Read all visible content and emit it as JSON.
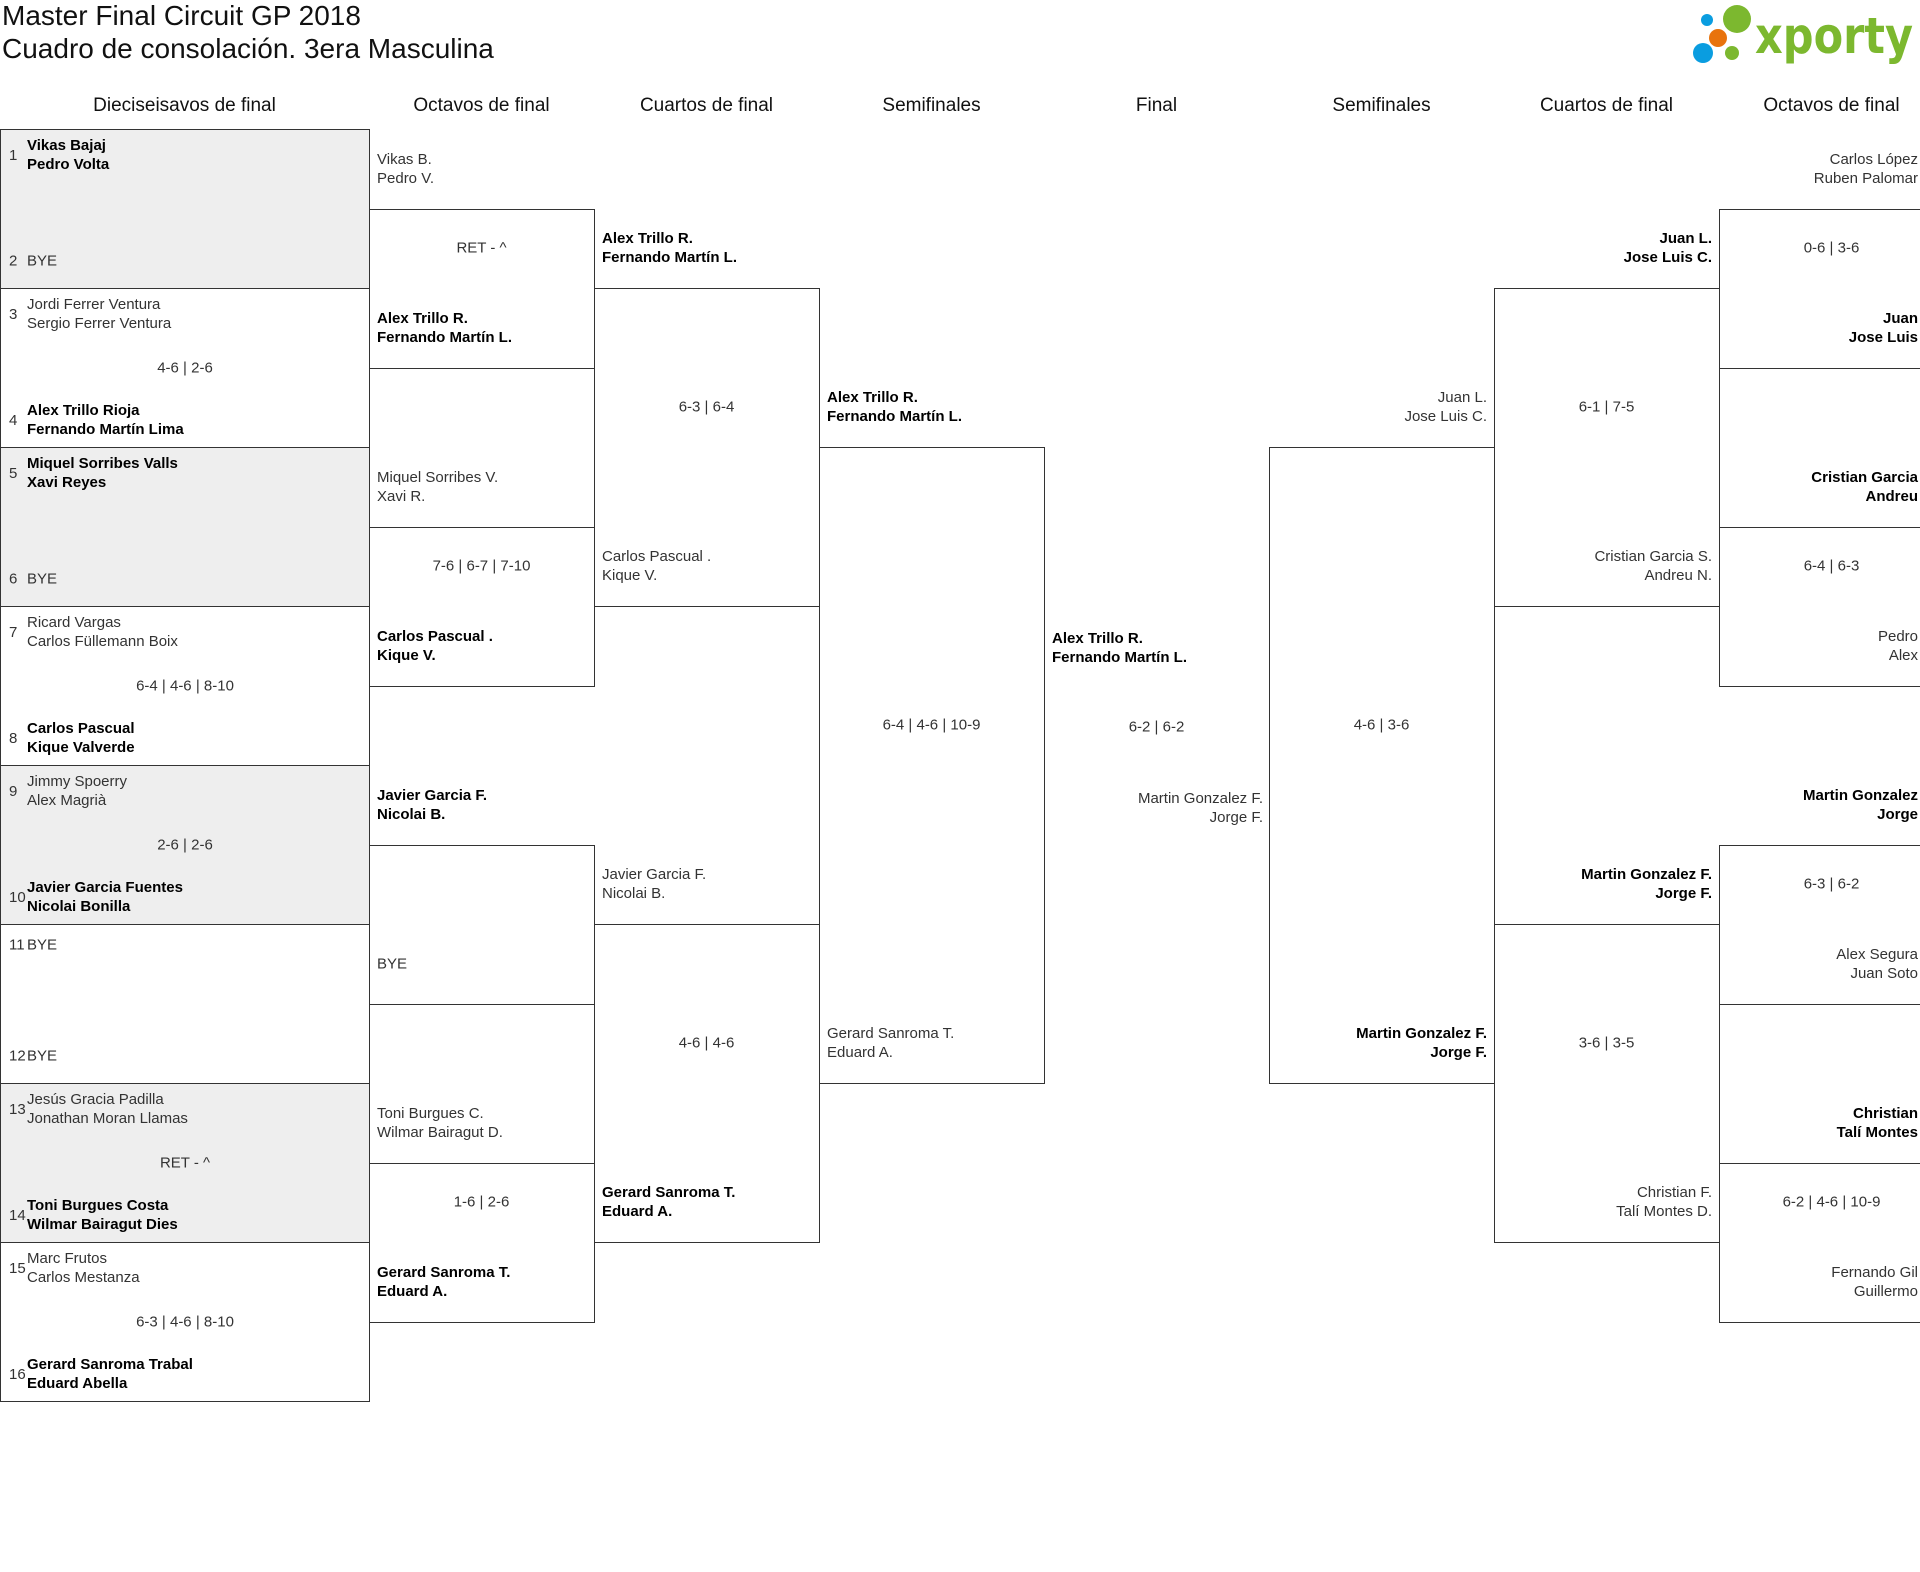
{
  "title": {
    "line1": "Master Final Circuit GP 2018",
    "line2": "Cuadro de consolación. 3era Masculina"
  },
  "logo": {
    "text": "xporty",
    "colors": {
      "green": "#7cb82f",
      "blue": "#0a9de0",
      "orange": "#e8730c"
    }
  },
  "headers": [
    "Dieciseisavos de final",
    "Octavos de final",
    "Cuartos de final",
    "Semifinales",
    "Final",
    "Semifinales",
    "Cuartos de final",
    "Octavos de final"
  ],
  "first_round": [
    {
      "top": {
        "seed": "1",
        "lines": [
          "Vikas Bajaj",
          "Pedro Volta"
        ],
        "win": true
      },
      "bottom": {
        "seed": "2",
        "lines": [
          "BYE"
        ],
        "win": false
      },
      "score": ""
    },
    {
      "top": {
        "seed": "3",
        "lines": [
          "Jordi Ferrer Ventura",
          "Sergio Ferrer Ventura"
        ],
        "win": false
      },
      "bottom": {
        "seed": "4",
        "lines": [
          "Alex Trillo Rioja",
          "Fernando Martín Lima"
        ],
        "win": true
      },
      "score": "4-6 | 2-6"
    },
    {
      "top": {
        "seed": "5",
        "lines": [
          "Miquel Sorribes Valls",
          "Xavi Reyes"
        ],
        "win": true
      },
      "bottom": {
        "seed": "6",
        "lines": [
          "BYE"
        ],
        "win": false
      },
      "score": ""
    },
    {
      "top": {
        "seed": "7",
        "lines": [
          "Ricard Vargas",
          "Carlos Füllemann Boix"
        ],
        "win": false
      },
      "bottom": {
        "seed": "8",
        "lines": [
          "Carlos Pascual",
          "Kique Valverde"
        ],
        "win": true
      },
      "score": "6-4 | 4-6 | 8-10"
    },
    {
      "top": {
        "seed": "9",
        "lines": [
          "Jimmy Spoerry",
          "Alex Magrià"
        ],
        "win": false
      },
      "bottom": {
        "seed": "10",
        "lines": [
          "Javier Garcia Fuentes",
          "Nicolai Bonilla"
        ],
        "win": true
      },
      "score": "2-6 | 2-6"
    },
    {
      "top": {
        "seed": "11",
        "lines": [
          "BYE"
        ],
        "win": false
      },
      "bottom": {
        "seed": "12",
        "lines": [
          "BYE"
        ],
        "win": false
      },
      "score": ""
    },
    {
      "top": {
        "seed": "13",
        "lines": [
          "Jesús Gracia Padilla",
          "Jonathan Moran Llamas"
        ],
        "win": false
      },
      "bottom": {
        "seed": "14",
        "lines": [
          "Toni Burgues Costa",
          "Wilmar Bairagut Dies"
        ],
        "win": true
      },
      "score": "RET - ^"
    },
    {
      "top": {
        "seed": "15",
        "lines": [
          "Marc Frutos",
          "Carlos Mestanza"
        ],
        "win": false
      },
      "bottom": {
        "seed": "16",
        "lines": [
          "Gerard Sanroma Trabal",
          "Eduard Abella"
        ],
        "win": true
      },
      "score": "6-3 | 4-6 | 8-10"
    }
  ],
  "left_rounds": [
    [
      {
        "top": [
          "Vikas B.",
          "Pedro V."
        ],
        "bottom": [
          "Alex Trillo R.",
          "Fernando Martín L."
        ],
        "winner": "bottom",
        "score": "RET - ^"
      },
      {
        "top": [
          "Miquel Sorribes V.",
          "Xavi R."
        ],
        "bottom": [
          "Carlos Pascual .",
          "Kique V."
        ],
        "winner": "bottom",
        "score": "7-6 | 6-7 | 7-10"
      },
      {
        "top": [
          "Javier Garcia F.",
          "Nicolai B."
        ],
        "bottom": [
          "BYE"
        ],
        "winner": "top",
        "score": ""
      },
      {
        "top": [
          "Toni Burgues C.",
          "Wilmar Bairagut D."
        ],
        "bottom": [
          "Gerard Sanroma T.",
          "Eduard A."
        ],
        "winner": "bottom",
        "score": "1-6 | 2-6"
      }
    ],
    [
      {
        "top": [
          "Alex Trillo R.",
          "Fernando Martín L."
        ],
        "bottom": [
          "Carlos Pascual .",
          "Kique V."
        ],
        "winner": "top",
        "score": "6-3 | 6-4"
      },
      {
        "top": [
          "Javier Garcia F.",
          "Nicolai B."
        ],
        "bottom": [
          "Gerard Sanroma T.",
          "Eduard A."
        ],
        "winner": "bottom",
        "score": "4-6 | 4-6"
      }
    ],
    [
      {
        "top": [
          "Alex Trillo R.",
          "Fernando Martín L."
        ],
        "bottom": [
          "Gerard Sanroma T.",
          "Eduard A."
        ],
        "winner": "top",
        "score": "6-4 | 4-6 | 10-9"
      }
    ]
  ],
  "final": {
    "left": [
      "Alex Trillo R.",
      "Fernando Martín L."
    ],
    "right": [
      "Martin Gonzalez F.",
      "Jorge F."
    ],
    "winner": "left",
    "score": "6-2 | 6-2"
  },
  "right_rounds": [
    [
      {
        "top": [
          "Juan L.",
          "Jose Luis C."
        ],
        "bottom": [
          "Martin Gonzalez F.",
          "Jorge F."
        ],
        "winner": "bottom",
        "score": "4-6 | 3-6"
      }
    ],
    [
      {
        "top": [
          "Juan L.",
          "Jose Luis C."
        ],
        "bottom": [
          "Cristian Garcia S.",
          "Andreu N."
        ],
        "winner": "top",
        "score": "6-1 | 7-5"
      },
      {
        "top": [
          "Martin Gonzalez F.",
          "Jorge F."
        ],
        "bottom": [
          "Christian F.",
          "Talí Montes D."
        ],
        "winner": "top",
        "score": "3-6 | 3-5"
      }
    ],
    [
      {
        "top": [
          "Carlos López",
          "Ruben Palomar"
        ],
        "bottom": [
          "Juan",
          "Jose Luis"
        ],
        "winner": "bottom",
        "score": "0-6 | 3-6"
      },
      {
        "top": [
          "Cristian Garcia",
          "Andreu"
        ],
        "bottom": [
          "Pedro",
          "Alex"
        ],
        "winner": "top",
        "score": "6-4 | 6-3"
      },
      {
        "top": [
          "Martin Gonzalez",
          "Jorge"
        ],
        "bottom": [
          "Alex Segura",
          "Juan Soto"
        ],
        "winner": "top",
        "score": "6-3 | 6-2"
      },
      {
        "top": [
          "Christian",
          "Talí Montes"
        ],
        "bottom": [
          "Fernando Gil",
          "Guillermo"
        ],
        "winner": "top",
        "score": "6-2 | 4-6 | 10-9"
      }
    ]
  ]
}
